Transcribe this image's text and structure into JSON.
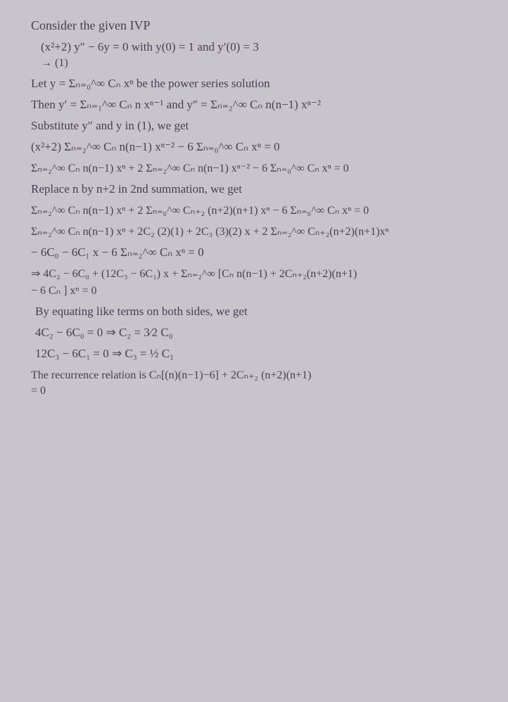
{
  "lines": {
    "l1": "Consider the given IVP",
    "l2": "(x²+2) y″  − 6y = 0   with  y(0) = 1  and  y′(0) = 3",
    "l2a": "                         → (1)",
    "l3": "Let  y = Σₙ₌₀^∞  Cₙ xⁿ  be the power series solution",
    "l4": "Then  y′ = Σₙ₌₁^∞ Cₙ n xⁿ⁻¹  and  y″ = Σₙ₌₂^∞ Cₙ n(n−1) xⁿ⁻²",
    "l5": "Substitute  y″ and  y  in (1), we get",
    "l6": "(x²+2) Σₙ₌₂^∞ Cₙ n(n−1) xⁿ⁻²  −  6 Σₙ₌₀^∞ Cₙ xⁿ  = 0",
    "l7": "Σₙ₌₂^∞ Cₙ n(n−1) xⁿ  +  2 Σₙ₌₂^∞ Cₙ n(n−1) xⁿ⁻²  −  6 Σₙ₌₀^∞ Cₙ xⁿ = 0",
    "l8": "Replace n by n+2 in 2nd summation, we get",
    "l9": "Σₙ₌₂^∞ Cₙ n(n−1) xⁿ + 2 Σₙ₌₀^∞ Cₙ₊₂ (n+2)(n+1) xⁿ − 6 Σₙ₌₀^∞ Cₙ xⁿ = 0",
    "l10": "Σₙ₌₂^∞ Cₙ n(n−1) xⁿ + 2C₂ (2)(1) + 2C₃ (3)(2) x + 2 Σₙ₌₂^∞ Cₙ₊₂(n+2)(n+1)xⁿ",
    "l11": "− 6C₀ − 6C₁ x  − 6 Σₙ₌₂^∞ Cₙ xⁿ = 0",
    "l12": "⇒  4C₂ − 6C₀  + (12C₃ − 6C₁) x + Σₙ₌₂^∞ [Cₙ n(n−1) + 2Cₙ₊₂(n+2)(n+1)",
    "l12a": "                                             − 6 Cₙ ] xⁿ = 0",
    "l13": "By equating like terms on both sides, we get",
    "l14": "4C₂ − 6C₀ = 0  ⇒   C₂ = 3⁄2 C₀",
    "l15": "12C₃ − 6C₁ = 0  ⇒   C₃ = ½ C₁",
    "l16": "The recurrence relation is   Cₙ[(n)(n−1)−6] + 2Cₙ₊₂ (n+2)(n+1)",
    "l16a": "                                                        = 0"
  }
}
